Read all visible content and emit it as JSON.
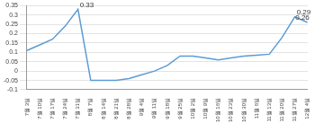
{
  "chart_data": {
    "type": "line",
    "categories": [
      "7월 3일",
      "7월 10일",
      "7월 17일",
      "7월 24일",
      "7월 31일",
      "8월 7일",
      "8월 14일",
      "8월 21일",
      "8월 28일",
      "9월 4일",
      "9월 11일",
      "9월 18일",
      "9월 25일",
      "10월 2일",
      "10월 9일",
      "10월 16일",
      "10월 23일",
      "10월 30일",
      "11월 6일",
      "11월 13일",
      "11월 20일",
      "11월 27일",
      "12월 4일"
    ],
    "values": [
      0.11,
      0.14,
      0.17,
      0.24,
      0.33,
      -0.05,
      -0.05,
      -0.05,
      -0.04,
      -0.02,
      0.0,
      0.03,
      0.08,
      0.08,
      0.07,
      0.06,
      0.07,
      0.08,
      0.085,
      0.09,
      0.18,
      0.29,
      0.26
    ],
    "value_labels": [
      null,
      null,
      null,
      null,
      "0.33",
      null,
      null,
      null,
      null,
      null,
      null,
      null,
      null,
      null,
      null,
      null,
      null,
      null,
      null,
      null,
      null,
      "0.29",
      "0.26"
    ],
    "data_labels": true,
    "color": "#5b9bd5",
    "ylim": [
      -0.1,
      0.35
    ],
    "yticks": [
      -0.1,
      -0.05,
      0,
      0.05,
      0.1,
      0.15,
      0.2,
      0.25,
      0.3,
      0.35
    ],
    "grid": true
  }
}
